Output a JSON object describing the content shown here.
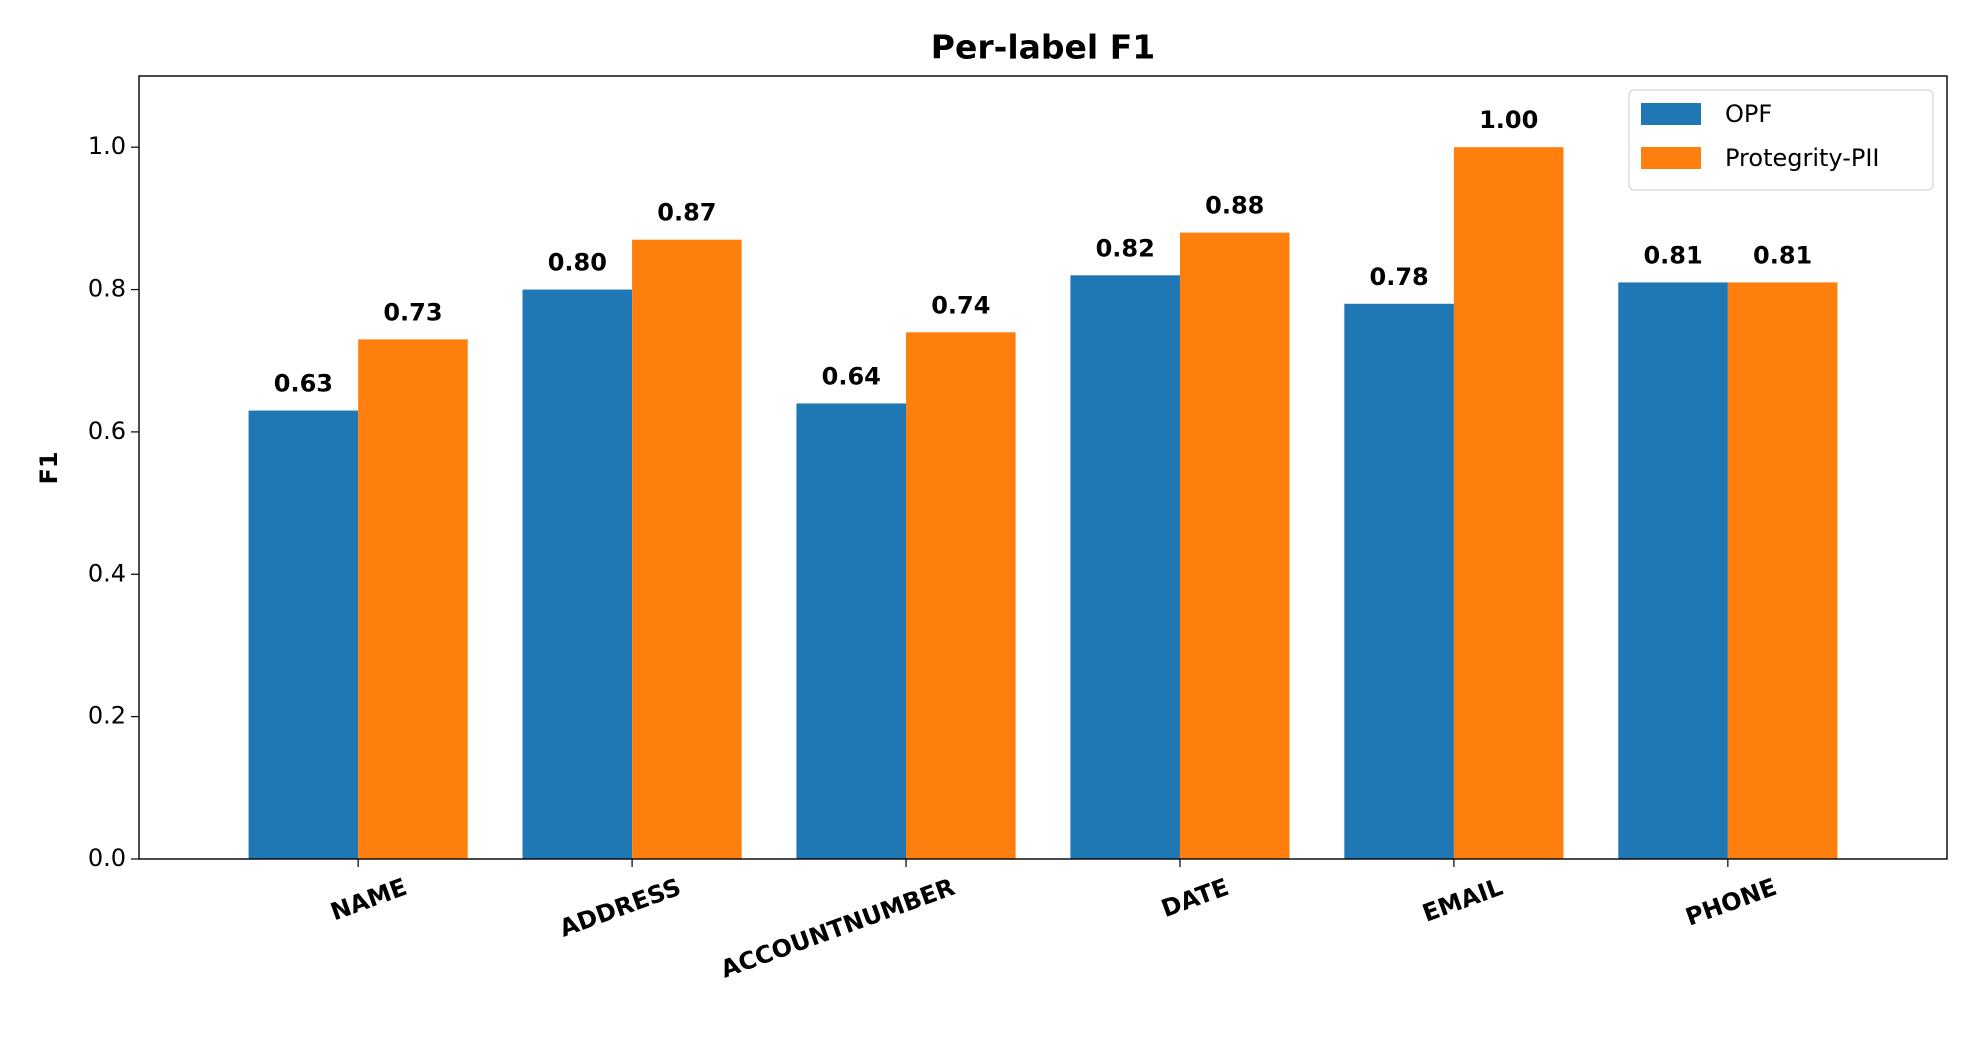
{
  "chart_data": {
    "type": "bar",
    "title": "Per-label F1",
    "y_label": "F1",
    "categories": [
      "NAME",
      "ADDRESS",
      "ACCOUNTNUMBER",
      "DATE",
      "EMAIL",
      "PHONE"
    ],
    "series": [
      {
        "name": "OPF",
        "color": "#1f77b4",
        "values": [
          0.63,
          0.8,
          0.64,
          0.82,
          0.78,
          0.81
        ],
        "value_labels": [
          "0.63",
          "0.80",
          "0.64",
          "0.82",
          "0.78",
          "0.81"
        ]
      },
      {
        "name": "Protegrity-PII",
        "color": "#ff7f0e",
        "values": [
          0.73,
          0.87,
          0.74,
          0.88,
          1.0,
          0.81
        ],
        "value_labels": [
          "0.73",
          "0.87",
          "0.74",
          "0.88",
          "1.00",
          "0.81"
        ]
      }
    ],
    "ylim": [
      0,
      1.1
    ],
    "yticks": [
      {
        "value": 0,
        "label": "0.0"
      },
      0.2,
      0.4,
      0.6,
      0.8,
      {
        "value": 1,
        "label": "1.0"
      }
    ],
    "legend": "upper right",
    "grid": false
  }
}
